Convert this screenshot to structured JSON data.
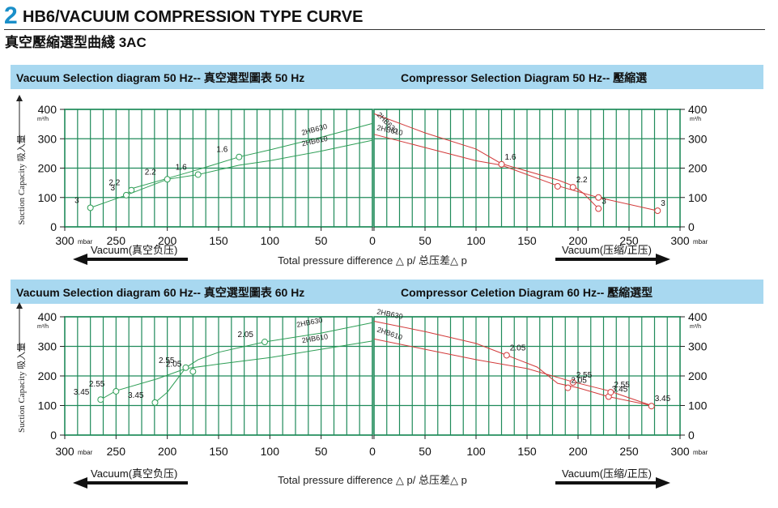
{
  "header": {
    "badge": "2",
    "title": "HB6/VACUUM COMPRESSION TYPE CURVE",
    "subtitle": "真空壓縮選型曲綫 3AC"
  },
  "sections": [
    {
      "vacuum_title": "Vacuum Selection diagram 50 Hz-- 真空選型圖表 50 Hz",
      "compressor_title": "Compressor Selection Diagram 50 Hz-- 壓縮選"
    },
    {
      "vacuum_title": "Vacuum Selection diagram 60 Hz-- 真空選型圖表 60 Hz",
      "compressor_title": "Compressor Celetion Diagram 60 Hz-- 壓縮選型"
    }
  ],
  "labels": {
    "unit_flow": "m³/h",
    "unit_pressure": "mbar",
    "ylabel": "Suction Capacity 吸入量",
    "xlabel": "Total pressure difference △ p/ 总压差△ p",
    "vacuum_arrow": "Vacuum(真空负压)",
    "pressure_arrow": "Vacuum(压缩/正压)"
  },
  "colors": {
    "grid": "#1f8a5a",
    "vacuum_curve": "#2e9e56",
    "compressor_curve": "#d23a3a",
    "band": "#a8d8f0",
    "accent": "#1a8fc9"
  },
  "chart_data": [
    {
      "type": "line",
      "title": "Vacuum Selection diagram 50 Hz",
      "x_direction": "reversed",
      "xlim": [
        0,
        300
      ],
      "ylim": [
        0,
        400
      ],
      "xticks": [
        300,
        250,
        200,
        150,
        100,
        50,
        0
      ],
      "yticks": [
        0,
        100,
        200,
        300,
        400
      ],
      "series": [
        {
          "name": "2HB630",
          "points": [
            [
              235,
              130
            ],
            [
              200,
              165
            ],
            [
              170,
              195
            ],
            [
              130,
              238
            ],
            [
              100,
              262
            ],
            [
              50,
              305
            ],
            [
              0,
              352
            ]
          ]
        },
        {
          "name": "2HB610",
          "points": [
            [
              275,
              65
            ],
            [
              240,
              108
            ],
            [
              200,
              162
            ],
            [
              170,
              178
            ],
            [
              130,
              210
            ],
            [
              100,
              225
            ],
            [
              50,
              258
            ],
            [
              0,
              295
            ]
          ]
        }
      ],
      "markers": [
        {
          "x": 275,
          "y": 65,
          "label": "3"
        },
        {
          "x": 240,
          "y": 108,
          "label": "3"
        },
        {
          "x": 235,
          "y": 125,
          "label": "2.2"
        },
        {
          "x": 200,
          "y": 162,
          "label": "2.2"
        },
        {
          "x": 170,
          "y": 178,
          "label": "1.6"
        },
        {
          "x": 130,
          "y": 238,
          "label": "1.6"
        }
      ]
    },
    {
      "type": "line",
      "title": "Compressor Selection Diagram 50 Hz",
      "xlim": [
        0,
        300
      ],
      "ylim": [
        0,
        400
      ],
      "xticks": [
        0,
        50,
        100,
        150,
        200,
        250,
        300
      ],
      "yticks": [
        0,
        100,
        200,
        300,
        400
      ],
      "series": [
        {
          "name": "2HB630",
          "points": [
            [
              0,
              385
            ],
            [
              50,
              320
            ],
            [
              100,
              265
            ],
            [
              125,
              215
            ],
            [
              180,
              160
            ],
            [
              195,
              140
            ],
            [
              205,
              115
            ],
            [
              220,
              62
            ]
          ]
        },
        {
          "name": "2HB610",
          "points": [
            [
              0,
              315
            ],
            [
              50,
              270
            ],
            [
              100,
              225
            ],
            [
              125,
              210
            ],
            [
              180,
              140
            ],
            [
              220,
              100
            ],
            [
              278,
              55
            ]
          ]
        }
      ],
      "markers": [
        {
          "x": 125,
          "y": 213,
          "label": "1.6"
        },
        {
          "x": 180,
          "y": 138,
          "label": ""
        },
        {
          "x": 195,
          "y": 135,
          "label": "2.2"
        },
        {
          "x": 220,
          "y": 100,
          "label": ""
        },
        {
          "x": 220,
          "y": 62,
          "label": "3"
        },
        {
          "x": 278,
          "y": 55,
          "label": "3"
        }
      ]
    },
    {
      "type": "line",
      "title": "Vacuum Selection diagram 60 Hz",
      "x_direction": "reversed",
      "xlim": [
        0,
        300
      ],
      "ylim": [
        0,
        400
      ],
      "xticks": [
        300,
        250,
        200,
        150,
        100,
        50,
        0
      ],
      "yticks": [
        0,
        100,
        200,
        300,
        400
      ],
      "series": [
        {
          "name": "2HB630",
          "points": [
            [
              212,
              110
            ],
            [
              200,
              145
            ],
            [
              182,
              228
            ],
            [
              170,
              255
            ],
            [
              150,
              280
            ],
            [
              105,
              315
            ],
            [
              50,
              345
            ],
            [
              0,
              380
            ]
          ]
        },
        {
          "name": "2HB610",
          "points": [
            [
              265,
              120
            ],
            [
              250,
              150
            ],
            [
              210,
              190
            ],
            [
              182,
              225
            ],
            [
              150,
              240
            ],
            [
              100,
              262
            ],
            [
              50,
              290
            ],
            [
              0,
              318
            ]
          ]
        }
      ],
      "markers": [
        {
          "x": 265,
          "y": 120,
          "label": "3.45"
        },
        {
          "x": 250,
          "y": 148,
          "label": "2.55"
        },
        {
          "x": 212,
          "y": 110,
          "label": "3.45"
        },
        {
          "x": 182,
          "y": 228,
          "label": "2.55"
        },
        {
          "x": 175,
          "y": 215,
          "label": "2.05"
        },
        {
          "x": 105,
          "y": 315,
          "label": "2.05"
        }
      ]
    },
    {
      "type": "line",
      "title": "Compressor Celetion Diagram 60 Hz",
      "xlim": [
        0,
        300
      ],
      "ylim": [
        0,
        400
      ],
      "xticks": [
        0,
        50,
        100,
        150,
        200,
        250,
        300
      ],
      "yticks": [
        0,
        100,
        200,
        300,
        400
      ],
      "series": [
        {
          "name": "2HB630",
          "points": [
            [
              0,
              385
            ],
            [
              50,
              350
            ],
            [
              100,
              310
            ],
            [
              130,
              270
            ],
            [
              160,
              230
            ],
            [
              180,
              175
            ],
            [
              200,
              160
            ],
            [
              230,
              130
            ],
            [
              272,
              100
            ]
          ]
        },
        {
          "name": "2HB610",
          "points": [
            [
              0,
              325
            ],
            [
              50,
              290
            ],
            [
              100,
              255
            ],
            [
              150,
              225
            ],
            [
              195,
              180
            ],
            [
              230,
              150
            ],
            [
              272,
              100
            ]
          ]
        }
      ],
      "markers": [
        {
          "x": 130,
          "y": 270,
          "label": "2.05"
        },
        {
          "x": 195,
          "y": 178,
          "label": "2.55"
        },
        {
          "x": 190,
          "y": 160,
          "label": "2.05"
        },
        {
          "x": 230,
          "y": 130,
          "label": "3.45"
        },
        {
          "x": 232,
          "y": 145,
          "label": "2.55"
        },
        {
          "x": 272,
          "y": 98,
          "label": "3.45"
        }
      ]
    }
  ]
}
